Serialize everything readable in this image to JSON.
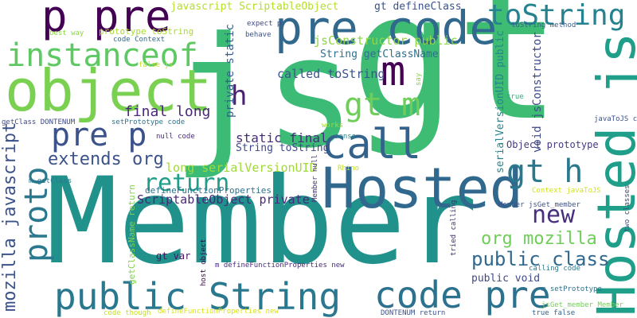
{
  "words": [
    {
      "text": "Member",
      "color": "#21918c"
    },
    {
      "text": "gt",
      "color": "#3fbc73"
    },
    {
      "text": "js",
      "color": "#3bbb75"
    },
    {
      "text": "object",
      "color": "#7ad151"
    },
    {
      "text": "Hosted",
      "color": "#31688e"
    },
    {
      "text": "Hosted js",
      "color": "#1f9e89"
    },
    {
      "text": "p pre",
      "color": "#440154"
    },
    {
      "text": "pre code",
      "color": "#31688e"
    },
    {
      "text": "toString",
      "color": "#26828e"
    },
    {
      "text": "instanceof",
      "color": "#5ec962"
    },
    {
      "text": "m",
      "color": "#440154"
    },
    {
      "text": "call",
      "color": "#33638d"
    },
    {
      "text": "public String",
      "color": "#2a788e"
    },
    {
      "text": "code pre",
      "color": "#2c718e"
    },
    {
      "text": "gt m",
      "color": "#6ece58"
    },
    {
      "text": "gt h",
      "color": "#2a788e"
    },
    {
      "text": "pre p",
      "color": "#3b528b"
    },
    {
      "text": "return",
      "color": "#1f9e89"
    },
    {
      "text": "proto",
      "color": "#2a788e"
    },
    {
      "text": "mozilla javascript",
      "color": "#3b528b"
    },
    {
      "text": "new",
      "color": "#472f7d"
    },
    {
      "text": "public class",
      "color": "#31688e"
    },
    {
      "text": "org mozilla",
      "color": "#6ece58"
    },
    {
      "text": "extends org",
      "color": "#3b528b"
    },
    {
      "text": "h",
      "color": "#482173"
    },
    {
      "text": "javascript ScriptableObject",
      "color": "#b5de2b"
    },
    {
      "text": "gt defineClass",
      "color": "#3b528b"
    },
    {
      "text": "jsConstructor public",
      "color": "#8fd744"
    },
    {
      "text": "String getClassName",
      "color": "#2c718e"
    },
    {
      "text": "called toString",
      "color": "#39568c"
    },
    {
      "text": "final long",
      "color": "#482878"
    },
    {
      "text": "private static",
      "color": "#355f8d"
    },
    {
      "text": "static final",
      "color": "#472d7b"
    },
    {
      "text": "long serialVersionUID",
      "color": "#a0da39"
    },
    {
      "text": "String toString",
      "color": "#3e4a89"
    },
    {
      "text": "ScriptableObject private",
      "color": "#482878"
    },
    {
      "text": "public void",
      "color": "#3e4989"
    },
    {
      "text": "void jsConstructor",
      "color": "#3e4c8a"
    },
    {
      "text": "serialVersionUID public",
      "color": "#25858e"
    },
    {
      "text": "Object prototype",
      "color": "#443983"
    },
    {
      "text": "gt var",
      "color": "#471063"
    },
    {
      "text": "getClassName return",
      "color": "#7fd34e"
    },
    {
      "text": "prototype toString",
      "color": "#a8db34"
    },
    {
      "text": "best way",
      "color": "#8bd646"
    },
    {
      "text": "code Context",
      "color": "#31688e"
    },
    {
      "text": "false js",
      "color": "#c0df25"
    },
    {
      "text": "expect p",
      "color": "#3e4989"
    },
    {
      "text": "behave",
      "color": "#3b528b"
    },
    {
      "text": "toString method",
      "color": "#355f8d"
    },
    {
      "text": "true",
      "color": "#29af7f"
    },
    {
      "text": "say",
      "color": "#85d54a"
    },
    {
      "text": "getClass DONTENUM",
      "color": "#3e4a89"
    },
    {
      "text": "setPrototype code",
      "color": "#2c728e"
    },
    {
      "text": "null code",
      "color": "#472c7a"
    },
    {
      "text": "works",
      "color": "#a2da37"
    },
    {
      "text": "sense",
      "color": "#24868e"
    },
    {
      "text": "javaToJS code",
      "color": "#3b528b"
    },
    {
      "text": "Rhino",
      "color": "#bddf26"
    },
    {
      "text": "Member null",
      "color": "#46327e"
    },
    {
      "text": "m getClass",
      "color": "#2a788e"
    },
    {
      "text": "defineFunctionProperties",
      "color": "#2c728e"
    },
    {
      "text": "Context javaToJS",
      "color": "#d2e21b"
    },
    {
      "text": "two classes",
      "color": "#3e4a89"
    },
    {
      "text": "Member jsGet_member",
      "color": "#3b528b"
    },
    {
      "text": "tried calling",
      "color": "#472c7a"
    },
    {
      "text": "host object",
      "color": "#440154"
    },
    {
      "text": "m defineFunctionProperties new",
      "color": "#472d7b"
    },
    {
      "text": "calling code",
      "color": "#2a788e"
    },
    {
      "text": "m setPrototype",
      "color": "#2d708e"
    },
    {
      "text": "jsGet_member Member",
      "color": "#73d056"
    },
    {
      "text": "code though",
      "color": "#c5e021"
    },
    {
      "text": "defineFunctionProperties new",
      "color": "#d8e219"
    },
    {
      "text": "DONTENUM return",
      "color": "#3b528b"
    },
    {
      "text": "true false",
      "color": "#33638d"
    }
  ]
}
